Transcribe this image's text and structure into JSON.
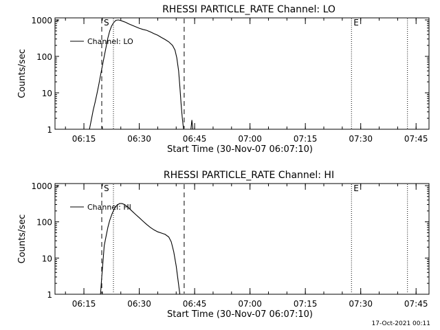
{
  "timestamp": "17-Oct-2021 00:11",
  "chart_data": [
    {
      "type": "line",
      "title": "RHESSI PARTICLE_RATE Channel: LO",
      "xlabel": "Start Time (30-Nov-07 06:07:10)",
      "ylabel": "Counts/sec",
      "y_scale": "log",
      "ylim": [
        1,
        1000
      ],
      "xlim": [
        "06:07:10",
        "07:48:30"
      ],
      "x_ticks": [
        "06:15",
        "06:30",
        "06:45",
        "07:00",
        "07:15",
        "07:30",
        "07:45"
      ],
      "y_ticks": [
        "1",
        "10",
        "100",
        "1000"
      ],
      "grid": false,
      "legend": "top-left",
      "markers": [
        {
          "label": "S",
          "time": "06:19:50",
          "style": "dashed"
        },
        {
          "label": "",
          "time": "06:23:00",
          "style": "dotted"
        },
        {
          "label": "",
          "time": "06:42:10",
          "style": "dashed"
        },
        {
          "label": "E",
          "time": "07:27:30",
          "style": "dotted"
        },
        {
          "label": "",
          "time": "07:42:40",
          "style": "dotted"
        }
      ],
      "series": [
        {
          "name": "Channel: LO",
          "points": [
            [
              "06:16:30",
              1
            ],
            [
              "06:17:00",
              1.8
            ],
            [
              "06:17:30",
              3.3
            ],
            [
              "06:18:00",
              5.4
            ],
            [
              "06:18:30",
              9
            ],
            [
              "06:19:00",
              16
            ],
            [
              "06:19:30",
              30
            ],
            [
              "06:20:00",
              55
            ],
            [
              "06:20:30",
              100
            ],
            [
              "06:21:00",
              180
            ],
            [
              "06:21:30",
              320
            ],
            [
              "06:22:00",
              500
            ],
            [
              "06:22:30",
              680
            ],
            [
              "06:23:00",
              830
            ],
            [
              "06:23:40",
              980
            ],
            [
              "06:24:20",
              1000
            ],
            [
              "06:25:00",
              960
            ],
            [
              "06:25:40",
              910
            ],
            [
              "06:26:20",
              860
            ],
            [
              "06:27:00",
              790
            ],
            [
              "06:28:00",
              720
            ],
            [
              "06:29:00",
              650
            ],
            [
              "06:30:00",
              590
            ],
            [
              "06:31:00",
              550
            ],
            [
              "06:32:00",
              520
            ],
            [
              "06:33:00",
              470
            ],
            [
              "06:34:00",
              420
            ],
            [
              "06:35:00",
              380
            ],
            [
              "06:36:00",
              330
            ],
            [
              "06:37:00",
              290
            ],
            [
              "06:38:00",
              250
            ],
            [
              "06:39:00",
              200
            ],
            [
              "06:39:40",
              150
            ],
            [
              "06:40:10",
              90
            ],
            [
              "06:40:40",
              40
            ],
            [
              "06:41:00",
              15
            ],
            [
              "06:41:20",
              5
            ],
            [
              "06:41:40",
              2
            ],
            [
              "06:42:00",
              1
            ],
            [
              "06:44:00",
              1
            ],
            [
              "06:44:15",
              1.8
            ],
            [
              "06:44:30",
              1
            ]
          ]
        }
      ]
    },
    {
      "type": "line",
      "title": "RHESSI PARTICLE_RATE Channel: HI",
      "xlabel": "Start Time (30-Nov-07 06:07:10)",
      "ylabel": "Counts/sec",
      "y_scale": "log",
      "ylim": [
        1,
        1000
      ],
      "xlim": [
        "06:07:10",
        "07:48:30"
      ],
      "x_ticks": [
        "06:15",
        "06:30",
        "06:45",
        "07:00",
        "07:15",
        "07:30",
        "07:45"
      ],
      "y_ticks": [
        "1",
        "10",
        "100",
        "1000"
      ],
      "grid": false,
      "legend": "top-left",
      "markers": [
        {
          "label": "S",
          "time": "06:19:50",
          "style": "dashed"
        },
        {
          "label": "",
          "time": "06:23:00",
          "style": "dotted"
        },
        {
          "label": "",
          "time": "06:42:10",
          "style": "dashed"
        },
        {
          "label": "E",
          "time": "07:27:30",
          "style": "dotted"
        },
        {
          "label": "",
          "time": "07:42:40",
          "style": "dotted"
        }
      ],
      "series": [
        {
          "name": "Channel: HI",
          "points": [
            [
              "06:19:30",
              1
            ],
            [
              "06:19:50",
              3
            ],
            [
              "06:20:10",
              8
            ],
            [
              "06:20:30",
              22
            ],
            [
              "06:21:00",
              40
            ],
            [
              "06:21:30",
              70
            ],
            [
              "06:22:00",
              110
            ],
            [
              "06:22:40",
              170
            ],
            [
              "06:23:20",
              240
            ],
            [
              "06:24:00",
              290
            ],
            [
              "06:24:40",
              320
            ],
            [
              "06:25:20",
              320
            ],
            [
              "06:26:00",
              300
            ],
            [
              "06:27:00",
              250
            ],
            [
              "06:28:00",
              200
            ],
            [
              "06:29:00",
              160
            ],
            [
              "06:30:00",
              130
            ],
            [
              "06:31:00",
              105
            ],
            [
              "06:32:00",
              85
            ],
            [
              "06:33:00",
              70
            ],
            [
              "06:34:00",
              60
            ],
            [
              "06:35:00",
              53
            ],
            [
              "06:36:00",
              49
            ],
            [
              "06:37:00",
              45
            ],
            [
              "06:38:00",
              38
            ],
            [
              "06:38:40",
              28
            ],
            [
              "06:39:20",
              15
            ],
            [
              "06:40:00",
              6
            ],
            [
              "06:40:30",
              2.5
            ],
            [
              "06:41:00",
              1
            ]
          ]
        }
      ]
    }
  ]
}
